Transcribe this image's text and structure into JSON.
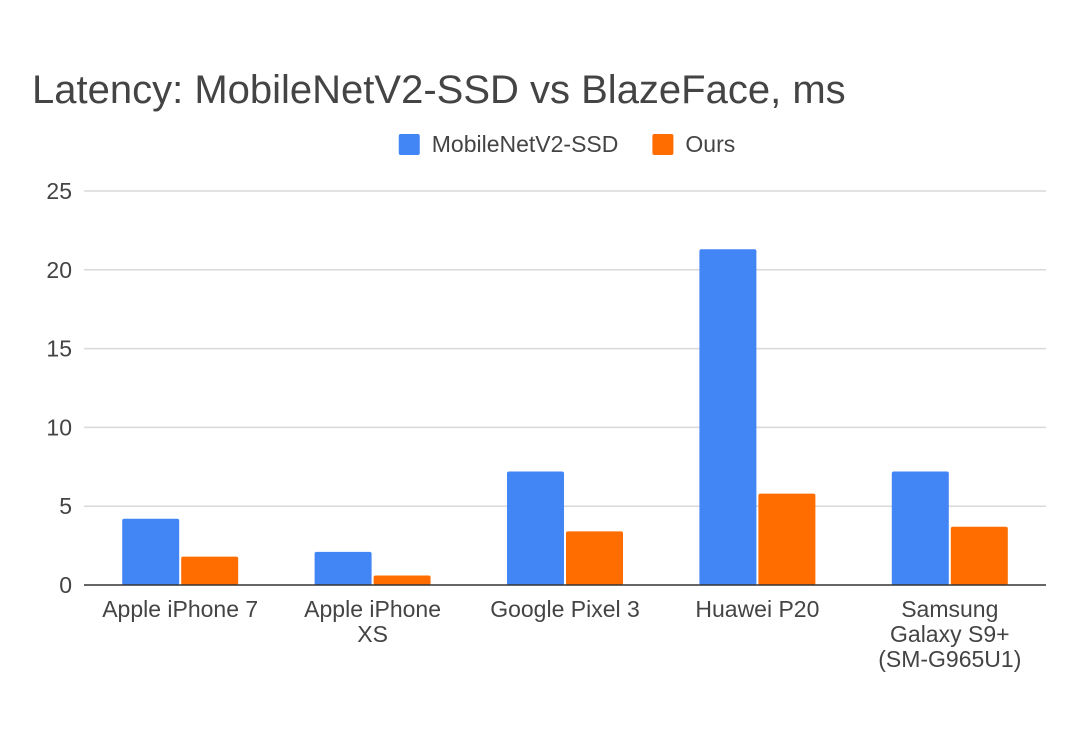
{
  "chart_data": {
    "type": "bar",
    "title": "Latency: MobileNetV2-SSD vs BlazeFace, ms",
    "xlabel": "",
    "ylabel": "",
    "ylim": [
      0,
      25
    ],
    "yticks": [
      0,
      5,
      10,
      15,
      20,
      25
    ],
    "grid": true,
    "legend_position": "top-center",
    "categories": [
      [
        "Apple iPhone 7"
      ],
      [
        "Apple iPhone",
        "XS"
      ],
      [
        "Google Pixel 3"
      ],
      [
        "Huawei P20"
      ],
      [
        "Samsung",
        "Galaxy S9+",
        "(SM-G965U1)"
      ]
    ],
    "series": [
      {
        "name": "MobileNetV2-SSD",
        "color": "#4285f4",
        "values": [
          4.2,
          2.1,
          7.2,
          21.3,
          7.2
        ]
      },
      {
        "name": "Ours",
        "color": "#ff6d01",
        "values": [
          1.8,
          0.6,
          3.4,
          5.8,
          3.7
        ]
      }
    ]
  },
  "colors": {
    "text": "#444444",
    "grid": "#d9d9d9",
    "axis": "#333333",
    "background": "#ffffff"
  }
}
